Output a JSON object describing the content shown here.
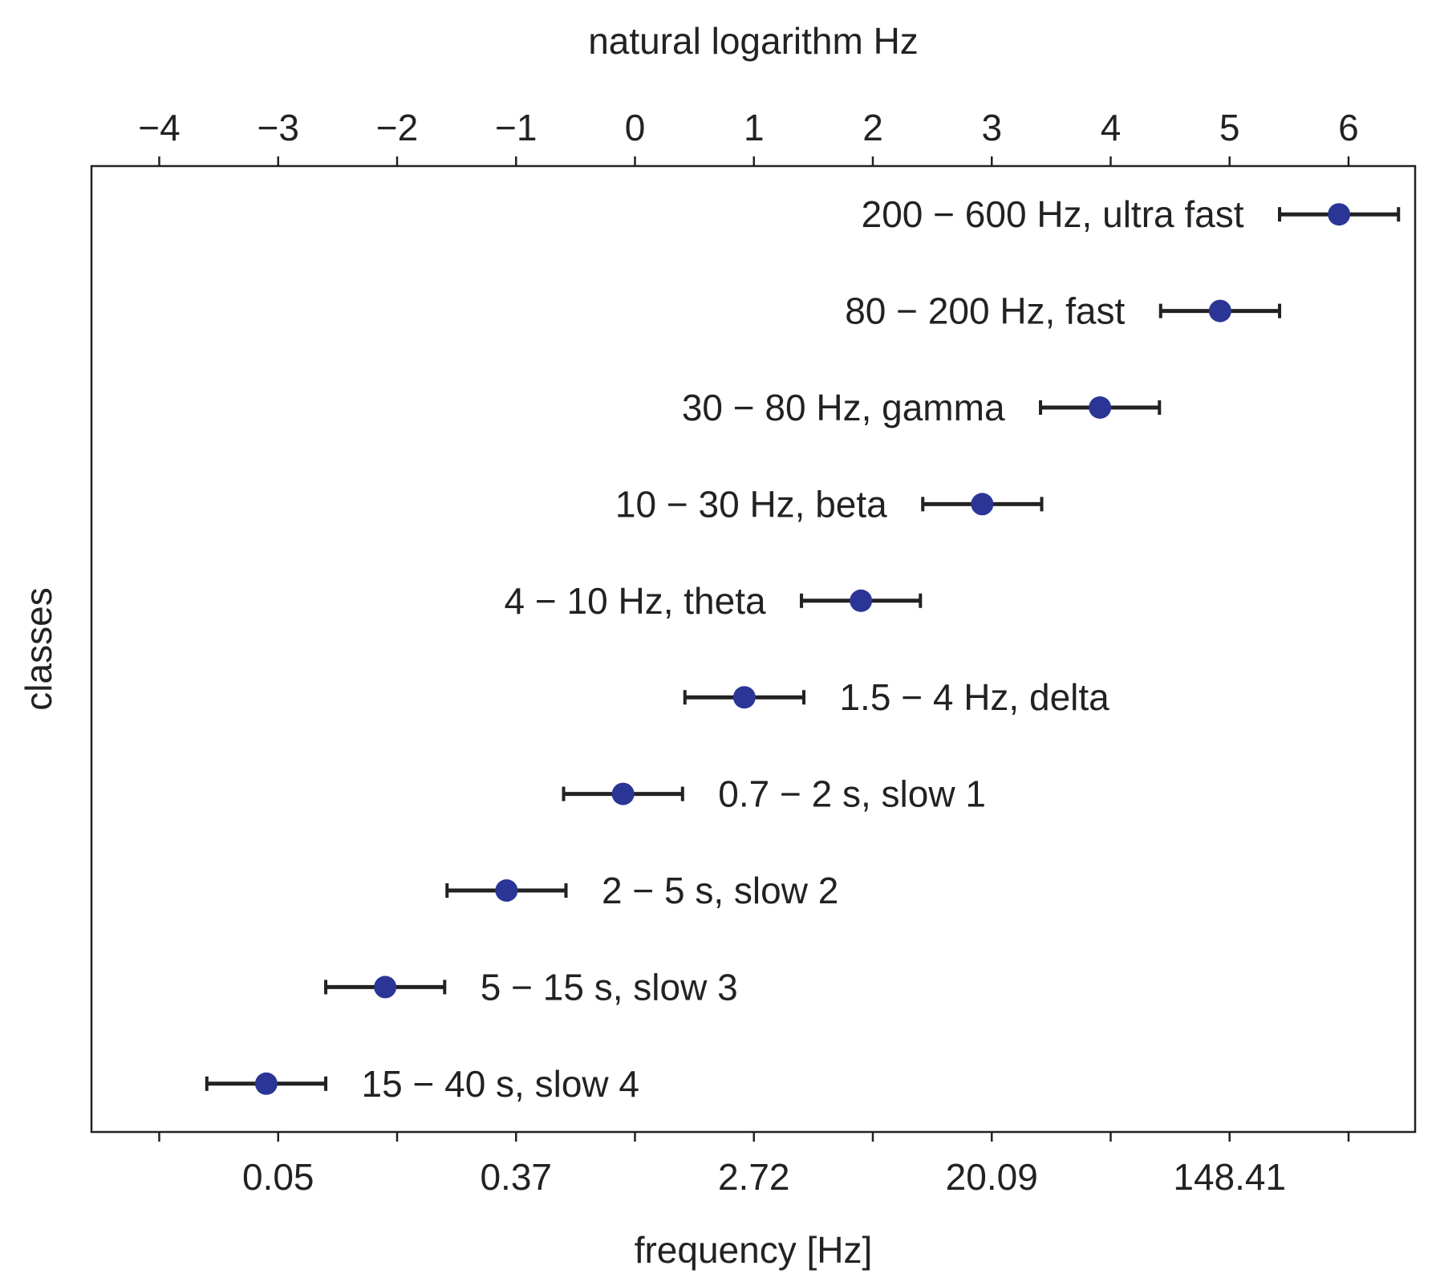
{
  "chart_data": {
    "type": "scatter",
    "title": "",
    "xlabel": "frequency [Hz]",
    "ylabel": "classes",
    "top_xlabel": "natural logarithm Hz",
    "xlim": [
      -4.57,
      6.56
    ],
    "ylim": [
      -0.5,
      9.5
    ],
    "grid": false,
    "top_ticks": [
      -4,
      -3,
      -2,
      -1,
      0,
      1,
      2,
      3,
      4,
      5,
      6
    ],
    "top_tick_labels": [
      "−4",
      "−3",
      "−2",
      "−1",
      "0",
      "1",
      "2",
      "3",
      "4",
      "5",
      "6"
    ],
    "bottom_ticks": [
      -4,
      -3,
      -2,
      -1,
      0,
      1,
      2,
      3,
      4,
      5,
      6
    ],
    "bottom_tick_labels": [
      "",
      "0.05",
      "",
      "0.37",
      "",
      "2.72",
      "",
      "20.09",
      "",
      "148.41",
      ""
    ],
    "marker_color": "#2b3595",
    "errorbar_color": "#222222",
    "points": [
      {
        "label": "15 − 40 s, slow 4",
        "y": 0,
        "x": -3.1,
        "xerr": 0.5,
        "label_side": "right"
      },
      {
        "label": "5 − 15 s, slow 3",
        "y": 1,
        "x": -2.1,
        "xerr": 0.5,
        "label_side": "right"
      },
      {
        "label": "2 − 5 s, slow 2",
        "y": 2,
        "x": -1.08,
        "xerr": 0.5,
        "label_side": "right"
      },
      {
        "label": "0.7 − 2 s, slow 1",
        "y": 3,
        "x": -0.1,
        "xerr": 0.5,
        "label_side": "right"
      },
      {
        "label": "1.5 − 4 Hz, delta",
        "y": 4,
        "x": 0.92,
        "xerr": 0.5,
        "label_side": "right"
      },
      {
        "label": "4 − 10 Hz, theta",
        "y": 5,
        "x": 1.9,
        "xerr": 0.5,
        "label_side": "left"
      },
      {
        "label": "10 − 30 Hz, beta",
        "y": 6,
        "x": 2.92,
        "xerr": 0.5,
        "label_side": "left"
      },
      {
        "label": "30 − 80 Hz, gamma",
        "y": 7,
        "x": 3.91,
        "xerr": 0.5,
        "label_side": "left"
      },
      {
        "label": "80 − 200 Hz, fast",
        "y": 8,
        "x": 4.92,
        "xerr": 0.5,
        "label_side": "left"
      },
      {
        "label": "200 − 600 Hz, ultra fast",
        "y": 9,
        "x": 5.92,
        "xerr": 0.5,
        "label_side": "left"
      }
    ]
  }
}
